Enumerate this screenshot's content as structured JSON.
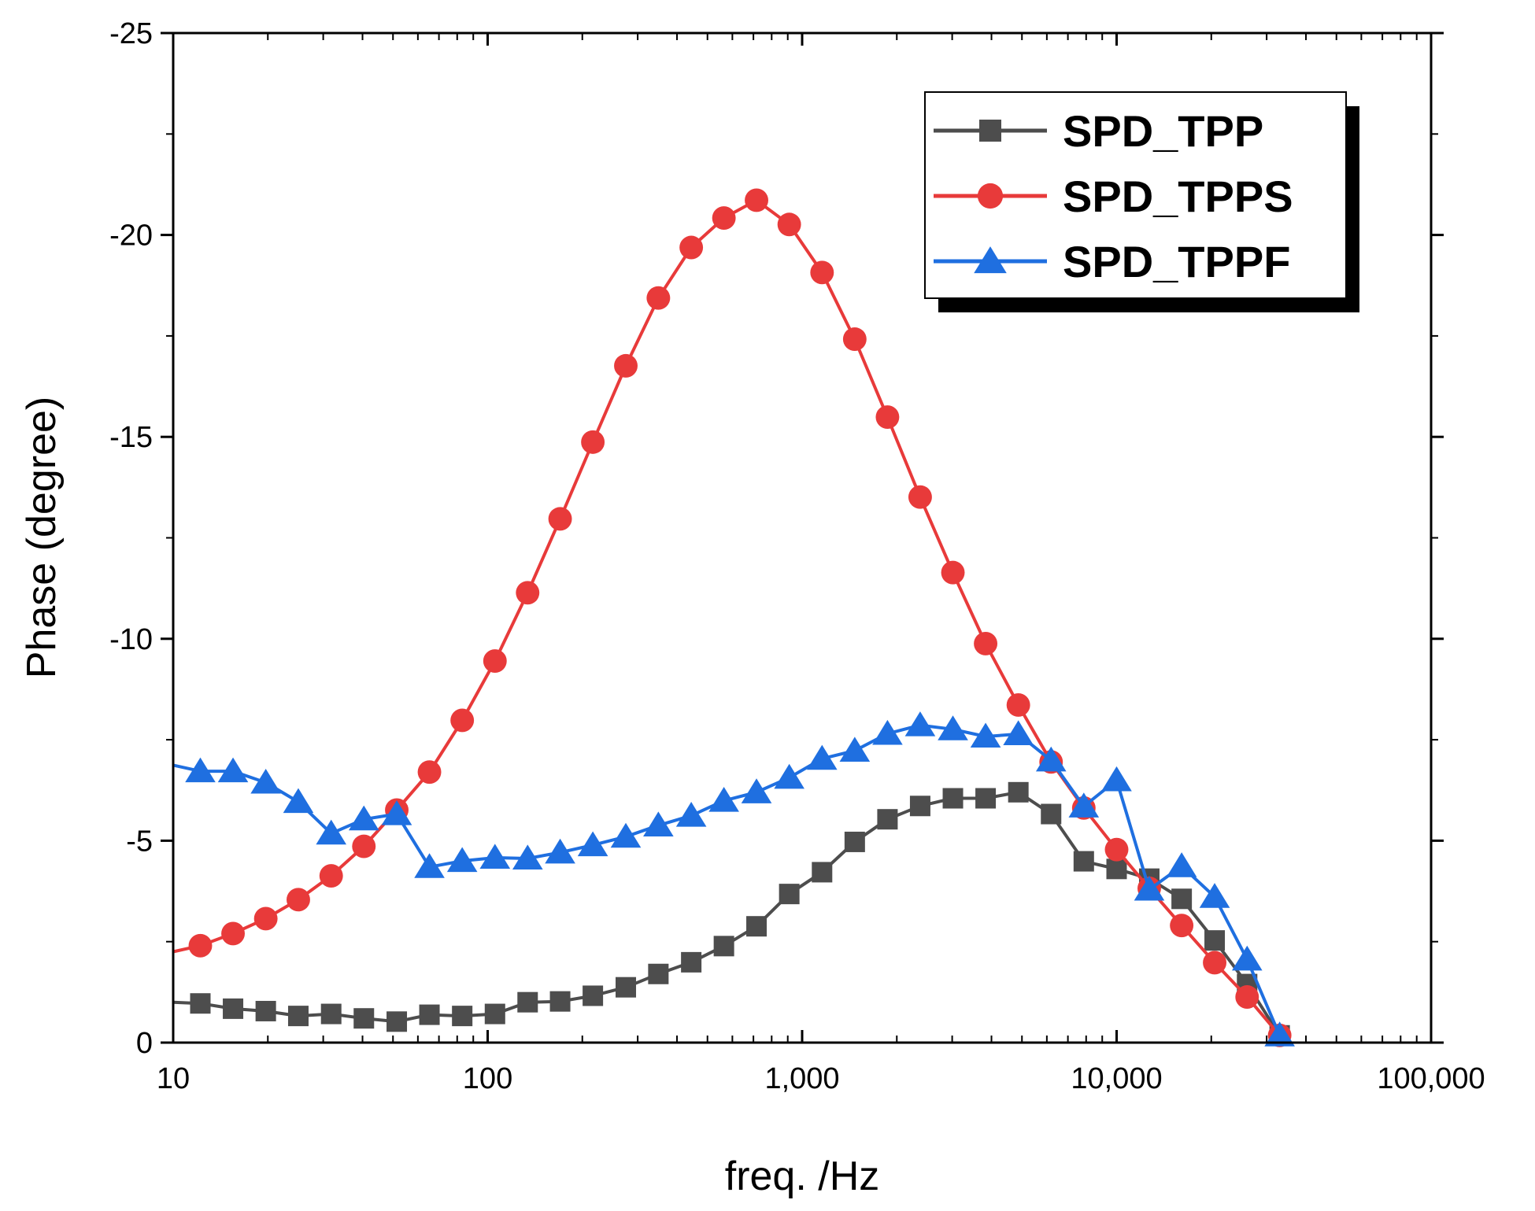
{
  "chart_data": {
    "type": "line",
    "title": "",
    "xlabel": "freq. /Hz",
    "ylabel": "Phase (degree)",
    "xscale": "log",
    "xlim": [
      10,
      100000
    ],
    "ylim": [
      0,
      -25
    ],
    "xticks": [
      10,
      100,
      1000,
      10000,
      100000
    ],
    "xtick_labels": [
      "10",
      "100",
      "1,000",
      "10,000",
      "100,000"
    ],
    "yticks": [
      0,
      -5,
      -10,
      -15,
      -20,
      -25
    ],
    "ytick_labels": [
      "0",
      "-5",
      "-10",
      "-15",
      "-20",
      "-25"
    ],
    "legend_position": "top-right",
    "series": [
      {
        "name": "SPD_TPP",
        "color": "#4d4d4d",
        "marker": "square",
        "points": [
          [
            10,
            -1.0
          ],
          [
            12.2,
            -0.97
          ],
          [
            15.5,
            -0.84
          ],
          [
            19.7,
            -0.78
          ],
          [
            25,
            -0.66
          ],
          [
            31.8,
            -0.71
          ],
          [
            40.4,
            -0.6
          ],
          [
            51.4,
            -0.52
          ],
          [
            65.3,
            -0.69
          ],
          [
            83,
            -0.66
          ],
          [
            105.5,
            -0.71
          ],
          [
            134,
            -1.0
          ],
          [
            170,
            -1.02
          ],
          [
            216,
            -1.16
          ],
          [
            275,
            -1.37
          ],
          [
            349,
            -1.7
          ],
          [
            444,
            -1.99
          ],
          [
            564,
            -2.39
          ],
          [
            716,
            -2.88
          ],
          [
            910,
            -3.68
          ],
          [
            1157,
            -4.22
          ],
          [
            1470,
            -4.97
          ],
          [
            1868,
            -5.53
          ],
          [
            2373,
            -5.86
          ],
          [
            3016,
            -6.05
          ],
          [
            3832,
            -6.05
          ],
          [
            4870,
            -6.2
          ],
          [
            6189,
            -5.66
          ],
          [
            7864,
            -4.49
          ],
          [
            10000,
            -4.3
          ],
          [
            12700,
            -4.06
          ],
          [
            16100,
            -3.56
          ],
          [
            20500,
            -2.53
          ],
          [
            26000,
            -1.45
          ],
          [
            33000,
            -0.18
          ]
        ]
      },
      {
        "name": "SPD_TPPS",
        "color": "#e83a3a",
        "marker": "circle",
        "points": [
          [
            10,
            -2.25
          ],
          [
            12.2,
            -2.4
          ],
          [
            15.5,
            -2.7
          ],
          [
            19.7,
            -3.07
          ],
          [
            25,
            -3.54
          ],
          [
            31.8,
            -4.13
          ],
          [
            40.4,
            -4.86
          ],
          [
            51.4,
            -5.76
          ],
          [
            65.3,
            -6.7
          ],
          [
            83,
            -7.98
          ],
          [
            105.5,
            -9.45
          ],
          [
            134,
            -11.14
          ],
          [
            170,
            -12.97
          ],
          [
            216,
            -14.87
          ],
          [
            275,
            -16.76
          ],
          [
            349,
            -18.44
          ],
          [
            444,
            -19.69
          ],
          [
            564,
            -20.42
          ],
          [
            716,
            -20.86
          ],
          [
            910,
            -20.26
          ],
          [
            1157,
            -19.07
          ],
          [
            1470,
            -17.42
          ],
          [
            1868,
            -15.49
          ],
          [
            2373,
            -13.51
          ],
          [
            3016,
            -11.64
          ],
          [
            3832,
            -9.88
          ],
          [
            4870,
            -8.36
          ],
          [
            6189,
            -6.95
          ],
          [
            7864,
            -5.81
          ],
          [
            10000,
            -4.78
          ],
          [
            12700,
            -3.82
          ],
          [
            16100,
            -2.9
          ],
          [
            20500,
            -1.98
          ],
          [
            26000,
            -1.13
          ],
          [
            33000,
            -0.18
          ]
        ]
      },
      {
        "name": "SPD_TPPF",
        "color": "#1f6fe0",
        "marker": "triangle",
        "points": [
          [
            10,
            -6.87
          ],
          [
            12.2,
            -6.72
          ],
          [
            15.5,
            -6.72
          ],
          [
            19.7,
            -6.44
          ],
          [
            25,
            -5.96
          ],
          [
            31.8,
            -5.18
          ],
          [
            40.4,
            -5.53
          ],
          [
            51.4,
            -5.66
          ],
          [
            65.3,
            -4.35
          ],
          [
            83,
            -4.5
          ],
          [
            105.5,
            -4.58
          ],
          [
            134,
            -4.56
          ],
          [
            170,
            -4.71
          ],
          [
            216,
            -4.89
          ],
          [
            275,
            -5.1
          ],
          [
            349,
            -5.38
          ],
          [
            444,
            -5.62
          ],
          [
            564,
            -5.99
          ],
          [
            716,
            -6.2
          ],
          [
            910,
            -6.56
          ],
          [
            1157,
            -7.03
          ],
          [
            1470,
            -7.23
          ],
          [
            1868,
            -7.65
          ],
          [
            2373,
            -7.86
          ],
          [
            3016,
            -7.76
          ],
          [
            3832,
            -7.58
          ],
          [
            4870,
            -7.64
          ],
          [
            6189,
            -6.99
          ],
          [
            7864,
            -5.85
          ],
          [
            10000,
            -6.5
          ],
          [
            12700,
            -3.79
          ],
          [
            16100,
            -4.37
          ],
          [
            20500,
            -3.61
          ],
          [
            26000,
            -2.06
          ],
          [
            33000,
            -0.18
          ]
        ]
      }
    ]
  }
}
